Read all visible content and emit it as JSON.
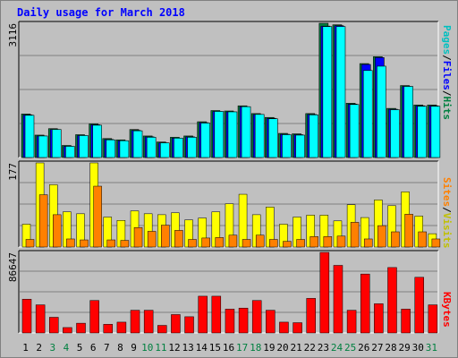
{
  "title": "Daily usage for March 2018",
  "colors": {
    "background": "#c0c0c0",
    "panel": "#c0c0c0",
    "hits": "#008040",
    "files": "#0000ff",
    "pages": "#00ffff",
    "visits": "#ffff00",
    "sites": "#ff8000",
    "kbytes": "#ff0000",
    "weekend_day": "#008040",
    "weekday": "#000000"
  },
  "legend": {
    "top": [
      {
        "label": "Pages",
        "color": "#00c0c0"
      },
      {
        "label": "/",
        "color": "#000000"
      },
      {
        "label": "Files",
        "color": "#0000ff"
      },
      {
        "label": "/",
        "color": "#000000"
      },
      {
        "label": "Hits",
        "color": "#008040"
      }
    ],
    "middle": [
      {
        "label": "Sites",
        "color": "#ff8000"
      },
      {
        "label": "/",
        "color": "#000000"
      },
      {
        "label": "Visits",
        "color": "#c0c000"
      }
    ],
    "bottom": [
      {
        "label": "KBytes",
        "color": "#ff0000"
      }
    ]
  },
  "chart_data": [
    {
      "type": "bar",
      "title": "Daily usage for March 2018",
      "ymax_label": "3116",
      "ylim": [
        0,
        3116
      ],
      "categories": [
        "1",
        "2",
        "3",
        "4",
        "5",
        "6",
        "7",
        "8",
        "9",
        "10",
        "11",
        "12",
        "13",
        "14",
        "15",
        "16",
        "17",
        "18",
        "19",
        "20",
        "21",
        "22",
        "23",
        "24",
        "25",
        "26",
        "27",
        "28",
        "29",
        "30",
        "31"
      ],
      "weekend_days": [
        "3",
        "4",
        "10",
        "11",
        "17",
        "18",
        "24",
        "25",
        "31"
      ],
      "series": [
        {
          "name": "Hits",
          "values": [
            1010,
            520,
            670,
            280,
            530,
            780,
            440,
            410,
            650,
            500,
            360,
            470,
            500,
            830,
            1090,
            1080,
            1200,
            1020,
            930,
            560,
            550,
            1020,
            3116,
            3080,
            1260,
            2180,
            2340,
            1140,
            1670,
            1220,
            1220
          ]
        },
        {
          "name": "Files",
          "values": [
            990,
            500,
            650,
            260,
            510,
            760,
            420,
            390,
            630,
            480,
            340,
            450,
            480,
            810,
            1070,
            1060,
            1180,
            1000,
            910,
            540,
            530,
            1000,
            3050,
            3060,
            1240,
            2160,
            2320,
            1120,
            1650,
            1200,
            1200
          ]
        },
        {
          "name": "Pages",
          "values": [
            980,
            500,
            650,
            260,
            510,
            750,
            410,
            390,
            620,
            470,
            340,
            450,
            470,
            800,
            1070,
            1060,
            1180,
            1000,
            900,
            530,
            520,
            990,
            3040,
            3040,
            1230,
            2020,
            2120,
            1110,
            1650,
            1190,
            1190
          ]
        }
      ]
    },
    {
      "type": "bar",
      "ymax_label": "177",
      "ylim": [
        0,
        177
      ],
      "categories": [
        "1",
        "2",
        "3",
        "4",
        "5",
        "6",
        "7",
        "8",
        "9",
        "10",
        "11",
        "12",
        "13",
        "14",
        "15",
        "16",
        "17",
        "18",
        "19",
        "20",
        "21",
        "22",
        "23",
        "24",
        "25",
        "26",
        "27",
        "28",
        "29",
        "30",
        "31"
      ],
      "series": [
        {
          "name": "Visits",
          "values": [
            48,
            177,
            131,
            74,
            70,
            177,
            63,
            56,
            76,
            70,
            68,
            72,
            57,
            61,
            74,
            91,
            111,
            68,
            84,
            48,
            63,
            67,
            67,
            55,
            89,
            62,
            99,
            87,
            116,
            65,
            28
          ]
        },
        {
          "name": "Sites",
          "values": [
            16,
            110,
            68,
            17,
            15,
            128,
            15,
            14,
            41,
            33,
            46,
            35,
            16,
            19,
            20,
            25,
            16,
            25,
            16,
            12,
            16,
            22,
            22,
            23,
            52,
            17,
            45,
            32,
            69,
            32,
            17
          ]
        }
      ]
    },
    {
      "type": "bar",
      "ymax_label": "86647",
      "ylim": [
        0,
        86647
      ],
      "categories": [
        "1",
        "2",
        "3",
        "4",
        "5",
        "6",
        "7",
        "8",
        "9",
        "10",
        "11",
        "12",
        "13",
        "14",
        "15",
        "16",
        "17",
        "18",
        "19",
        "20",
        "21",
        "22",
        "23",
        "24",
        "25",
        "26",
        "27",
        "28",
        "29",
        "30",
        "31"
      ],
      "series": [
        {
          "name": "KBytes",
          "values": [
            36280,
            30230,
            16850,
            5810,
            10470,
            34930,
            9300,
            11620,
            24420,
            24420,
            8140,
            19770,
            17440,
            39540,
            39540,
            25590,
            26740,
            34930,
            24420,
            11620,
            11040,
            37200,
            86647,
            72690,
            24420,
            63390,
            31390,
            70370,
            25590,
            59860,
            30230
          ]
        }
      ]
    }
  ]
}
